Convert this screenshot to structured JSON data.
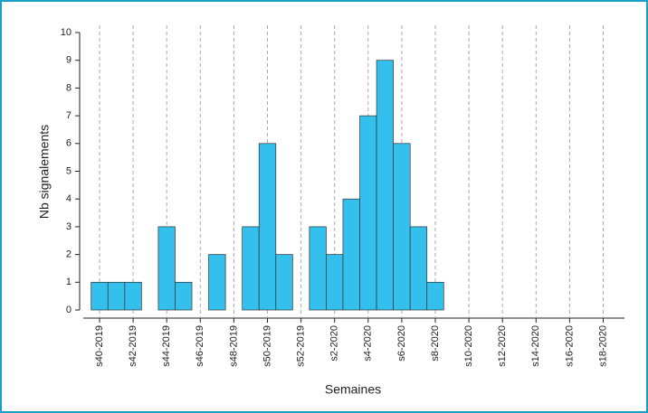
{
  "chart_data": {
    "type": "bar",
    "xlabel": "Semaines",
    "ylabel": "Nb signalements",
    "categories": [
      "s40-2019",
      null,
      "s42-2019",
      null,
      "s44-2019",
      null,
      "s46-2019",
      null,
      "s48-2019",
      null,
      "s50-2019",
      null,
      "s52-2019",
      null,
      "s2-2020",
      null,
      "s4-2020",
      null,
      "s6-2020",
      null,
      "s8-2020",
      null,
      "s10-2020",
      null,
      "s12-2020",
      null,
      "s14-2020",
      null,
      "s16-2020",
      null,
      "s18-2020"
    ],
    "values": [
      1,
      1,
      1,
      0,
      3,
      1,
      0,
      2,
      0,
      3,
      6,
      2,
      0,
      3,
      2,
      4,
      7,
      9,
      6,
      3,
      1,
      0,
      0,
      0,
      0,
      0,
      0,
      0,
      0,
      0,
      0
    ],
    "color": "#33c0ec",
    "ylim": [
      0,
      10
    ],
    "yticks": [
      0,
      1,
      2,
      3,
      4,
      5,
      6,
      7,
      8,
      9,
      10
    ],
    "grid": true
  }
}
